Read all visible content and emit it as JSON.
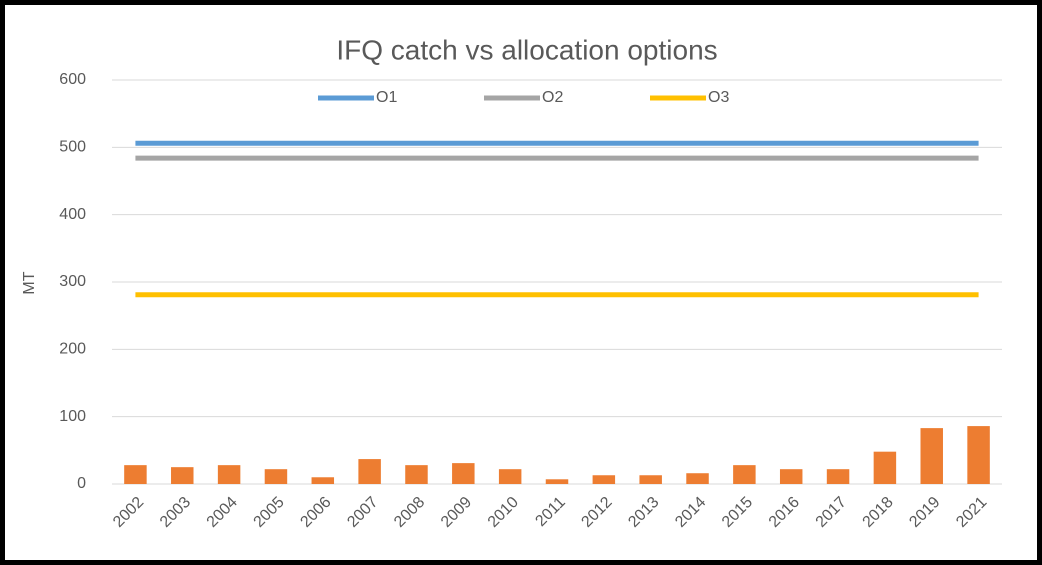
{
  "chart_data": {
    "type": "bar",
    "title": "IFQ catch vs allocation options",
    "y_label": "MT",
    "categories": [
      "2002",
      "2003",
      "2004",
      "2005",
      "2006",
      "2007",
      "2008",
      "2009",
      "2010",
      "2011",
      "2012",
      "2013",
      "2014",
      "2015",
      "2016",
      "2017",
      "2018",
      "2019",
      "2021"
    ],
    "series": [
      {
        "type": "bar",
        "color": "#ed7d31",
        "values": [
          28,
          25,
          28,
          22,
          10,
          37,
          28,
          31,
          22,
          7,
          13,
          13,
          16,
          28,
          22,
          22,
          48,
          83,
          86
        ]
      },
      {
        "type": "line",
        "name": "O1",
        "color": "#5b9bd5",
        "values": [
          506,
          506,
          506,
          506,
          506,
          506,
          506,
          506,
          506,
          506,
          506,
          506,
          506,
          506,
          506,
          506,
          506,
          506,
          506
        ]
      },
      {
        "type": "line",
        "name": "O2",
        "color": "#a5a5a5",
        "values": [
          484,
          484,
          484,
          484,
          484,
          484,
          484,
          484,
          484,
          484,
          484,
          484,
          484,
          484,
          484,
          484,
          484,
          484,
          484
        ]
      },
      {
        "type": "line",
        "name": "O3",
        "color": "#ffc000",
        "values": [
          281,
          281,
          281,
          281,
          281,
          281,
          281,
          281,
          281,
          281,
          281,
          281,
          281,
          281,
          281,
          281,
          281,
          281,
          281
        ]
      }
    ],
    "ylim": [
      0,
      600
    ],
    "yticks": [
      0,
      100,
      200,
      300,
      400,
      500,
      600
    ],
    "grid": true,
    "legend": "top"
  }
}
